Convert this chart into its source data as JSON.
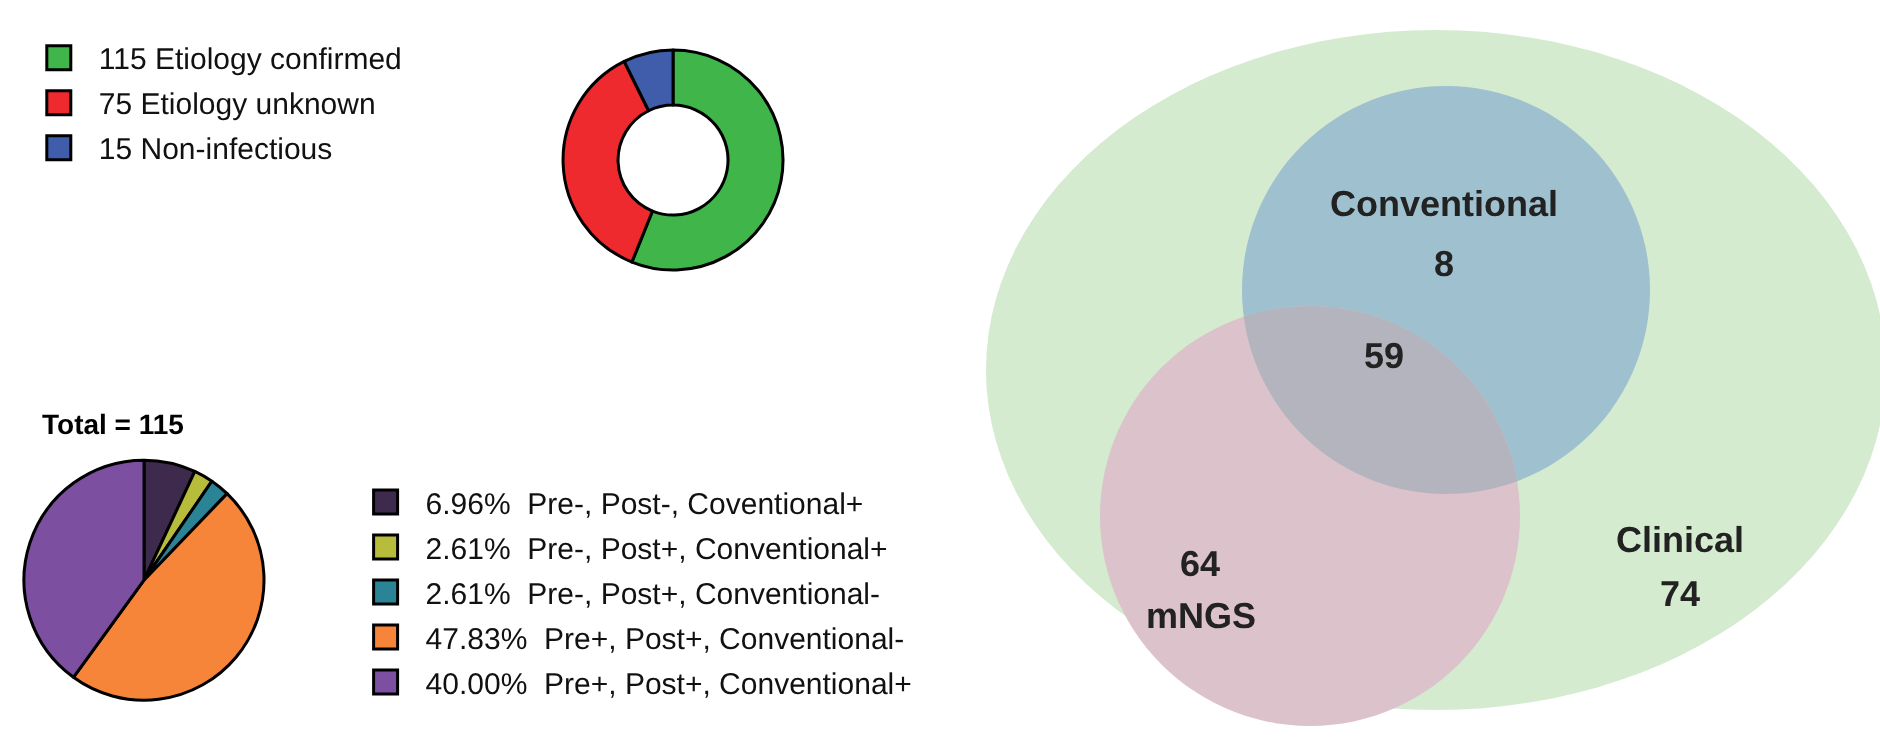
{
  "chart_data": [
    {
      "type": "donut",
      "categories": [
        "Etiology confirmed",
        "Etiology unknown",
        "Non-infectious"
      ],
      "values": [
        115,
        75,
        15
      ],
      "value_labels": [
        "115",
        "75",
        "15"
      ],
      "colors": [
        "#3fb54a",
        "#ee2a2e",
        "#3f5dab"
      ],
      "legend": "left"
    },
    {
      "type": "pie",
      "title": "Total = 115",
      "categories": [
        "Pre-, Post-, Coventional+",
        "Pre-, Post+, Conventional+",
        "Pre-, Post+, Conventional-",
        "Pre+, Post+, Conventional-",
        "Pre+, Post+, Conventional+"
      ],
      "values": [
        6.96,
        2.61,
        2.61,
        47.83,
        40.0
      ],
      "value_labels": [
        "6.96% ",
        "2.61% ",
        "2.61% ",
        "47.83% ",
        "40.00% "
      ],
      "colors": [
        "#3d2a4c",
        "#b7bc3a",
        "#2a8496",
        "#f6853a",
        "#7c4fa0"
      ],
      "legend": "right"
    },
    {
      "type": "other",
      "categories": [
        "Conventional",
        "mNGS",
        "Clinical"
      ],
      "values": [
        8,
        64,
        74
      ],
      "value_labels": [
        "8",
        "64",
        "74"
      ],
      "annotations": [
        "59"
      ]
    }
  ]
}
